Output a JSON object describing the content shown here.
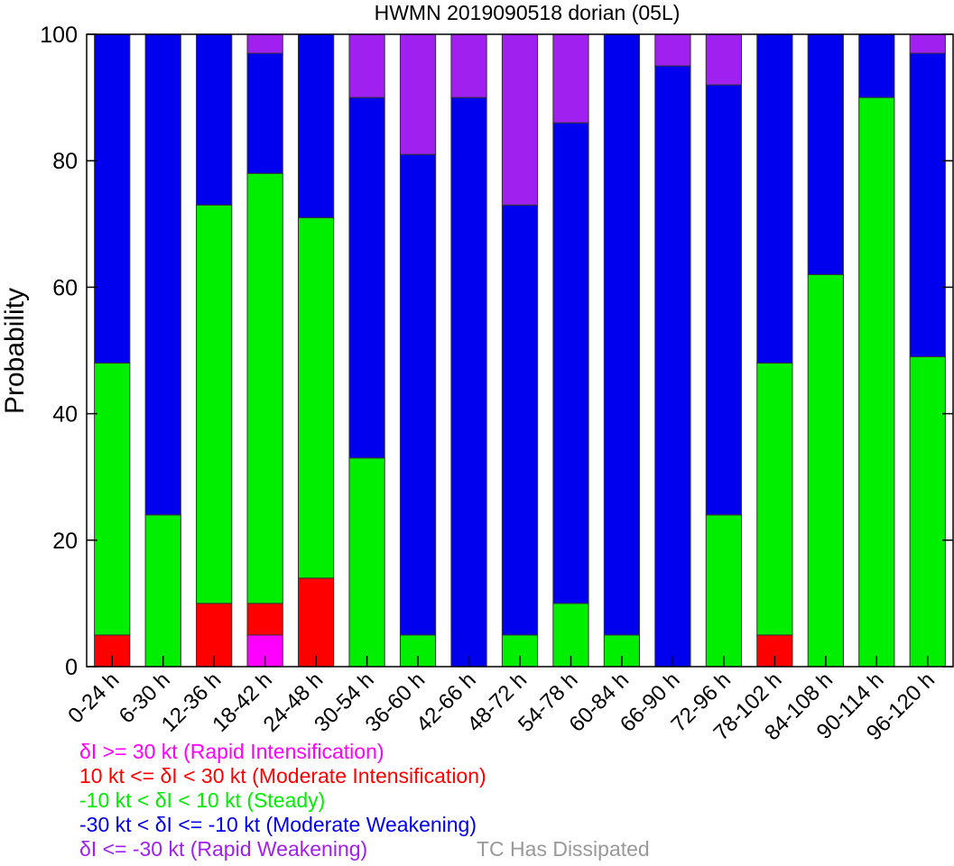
{
  "chart_data": {
    "type": "bar",
    "stacked": true,
    "title": "HWMN 2019090518 dorian (05L)",
    "xlabel": "",
    "ylabel": "Probability",
    "ylim": [
      0,
      100
    ],
    "yticks": [
      0,
      20,
      40,
      60,
      80,
      100
    ],
    "grid": false,
    "categories": [
      "0-24 h",
      "6-30 h",
      "12-36 h",
      "18-42 h",
      "24-48 h",
      "30-54 h",
      "36-60 h",
      "42-66 h",
      "48-72 h",
      "54-78 h",
      "60-84 h",
      "66-90 h",
      "72-96 h",
      "78-102 h",
      "84-108 h",
      "90-114 h",
      "96-120 h"
    ],
    "series": [
      {
        "name": "δI >= 30 kt (Rapid Intensification)",
        "color": "#ff00ff",
        "values": [
          0,
          0,
          0,
          5,
          0,
          0,
          0,
          0,
          0,
          0,
          0,
          0,
          0,
          0,
          0,
          0,
          0
        ]
      },
      {
        "name": "10 kt <= δI < 30 kt (Moderate Intensification)",
        "color": "#ff0000",
        "values": [
          5,
          0,
          10,
          5,
          14,
          0,
          0,
          0,
          0,
          0,
          0,
          0,
          0,
          5,
          0,
          0,
          0
        ]
      },
      {
        "name": "-10 kt < δI < 10 kt (Steady)",
        "color": "#00ee00",
        "values": [
          43,
          24,
          63,
          68,
          57,
          33,
          5,
          0,
          5,
          10,
          5,
          0,
          24,
          43,
          62,
          90,
          49
        ]
      },
      {
        "name": "-30 kt < δI <= -10 kt (Moderate Weakening)",
        "color": "#0000ee",
        "values": [
          52,
          76,
          27,
          19,
          29,
          57,
          76,
          90,
          68,
          76,
          95,
          95,
          68,
          52,
          38,
          10,
          48
        ]
      },
      {
        "name": "δI <= -30 kt (Rapid Weakening)",
        "color": "#a020f0",
        "values": [
          0,
          0,
          0,
          3,
          0,
          10,
          19,
          10,
          27,
          14,
          0,
          5,
          8,
          0,
          0,
          0,
          3
        ]
      }
    ],
    "legend_position": "bottom-left",
    "extra_legend": {
      "label": "TC Has Dissipated",
      "color": "#999999"
    }
  }
}
